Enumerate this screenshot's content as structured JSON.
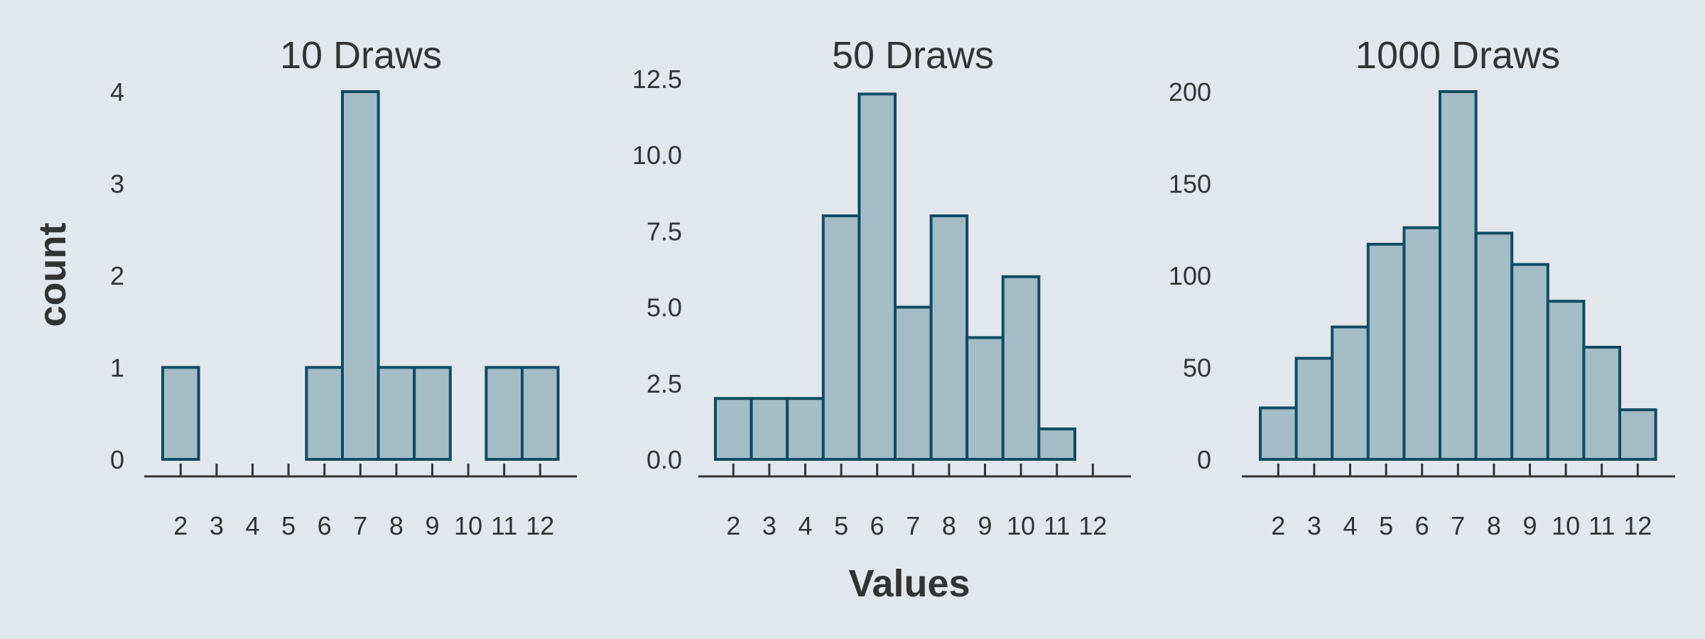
{
  "colors": {
    "background": "#e1e7ec",
    "bar_fill": "#a3bcc7",
    "bar_stroke": "#0f4b63",
    "text": "#333333"
  },
  "axes": {
    "xlabel": "Values",
    "ylabel": "count"
  },
  "chart_data": [
    {
      "type": "bar",
      "title": "10 Draws",
      "categories": [
        "2",
        "3",
        "4",
        "5",
        "6",
        "7",
        "8",
        "9",
        "10",
        "11",
        "12"
      ],
      "values": [
        1,
        0,
        0,
        0,
        1,
        4,
        1,
        1,
        0,
        1,
        1
      ],
      "yticks": [
        "0",
        "1",
        "2",
        "3",
        "4"
      ],
      "ylim": [
        0,
        4
      ]
    },
    {
      "type": "bar",
      "title": "50 Draws",
      "categories": [
        "2",
        "3",
        "4",
        "5",
        "6",
        "7",
        "8",
        "9",
        "10",
        "11",
        "12"
      ],
      "values": [
        2,
        2,
        2,
        8,
        12,
        5,
        8,
        4,
        6,
        1,
        0
      ],
      "yticks": [
        "0.0",
        "2.5",
        "5.0",
        "7.5",
        "10.0",
        "12.5"
      ],
      "ylim": [
        0,
        12.5
      ]
    },
    {
      "type": "bar",
      "title": "1000 Draws",
      "categories": [
        "2",
        "3",
        "4",
        "5",
        "6",
        "7",
        "8",
        "9",
        "10",
        "11",
        "12"
      ],
      "values": [
        28,
        55,
        72,
        117,
        126,
        200,
        123,
        106,
        86,
        61,
        27
      ],
      "yticks": [
        "0",
        "50",
        "100",
        "150",
        "200"
      ],
      "ylim": [
        0,
        200
      ]
    }
  ]
}
